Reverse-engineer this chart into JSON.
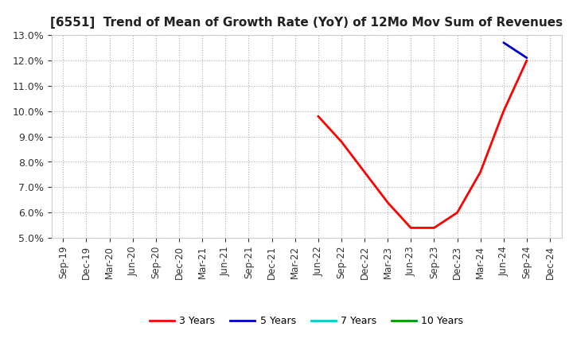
{
  "title": "[6551]  Trend of Mean of Growth Rate (YoY) of 12Mo Mov Sum of Revenues",
  "ylim": [
    0.05,
    0.13
  ],
  "yticks": [
    0.05,
    0.06,
    0.07,
    0.08,
    0.09,
    0.1,
    0.11,
    0.12,
    0.13
  ],
  "background_color": "#ffffff",
  "grid_color": "#b0b0b0",
  "series": {
    "3 Years": {
      "color": "#ff0000",
      "dates": [
        "Jun-22",
        "Sep-22",
        "Dec-22",
        "Mar-23",
        "Jun-23",
        "Sep-23",
        "Dec-23",
        "Mar-24",
        "Jun-24",
        "Sep-24"
      ],
      "values": [
        0.098,
        0.088,
        0.076,
        0.064,
        0.054,
        0.054,
        0.06,
        0.076,
        0.1,
        0.12
      ]
    },
    "5 Years": {
      "color": "#0000cc",
      "dates": [
        "Jun-24",
        "Sep-24"
      ],
      "values": [
        0.127,
        0.121
      ]
    },
    "7 Years": {
      "color": "#00cccc",
      "dates": [],
      "values": []
    },
    "10 Years": {
      "color": "#009900",
      "dates": [],
      "values": []
    }
  },
  "xtick_labels": [
    "Sep-19",
    "Dec-19",
    "Mar-20",
    "Jun-20",
    "Sep-20",
    "Dec-20",
    "Mar-21",
    "Jun-21",
    "Sep-21",
    "Dec-21",
    "Mar-22",
    "Jun-22",
    "Sep-22",
    "Dec-22",
    "Mar-23",
    "Jun-23",
    "Sep-23",
    "Dec-23",
    "Mar-24",
    "Jun-24",
    "Sep-24",
    "Dec-24"
  ],
  "legend_labels": [
    "3 Years",
    "5 Years",
    "7 Years",
    "10 Years"
  ],
  "legend_colors": [
    "#ff0000",
    "#0000cc",
    "#00cccc",
    "#009900"
  ],
  "title_fontsize": 11,
  "tick_fontsize": 8.5,
  "ytick_fontsize": 9
}
